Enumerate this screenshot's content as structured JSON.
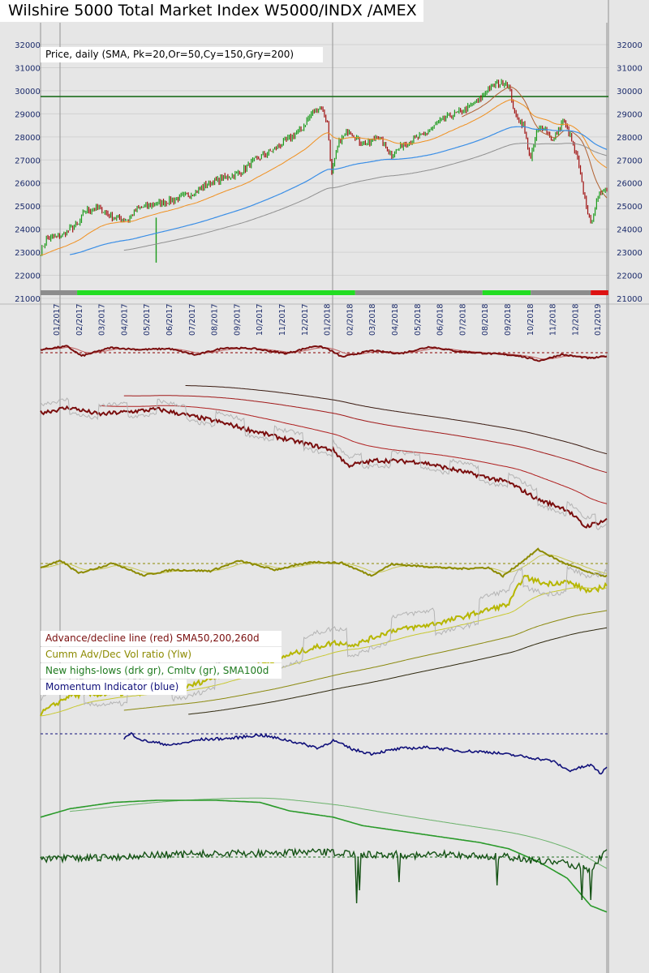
{
  "header": {
    "title": "Wilshire 5000 Total Market Index W5000/INDX /AMEX"
  },
  "price_legend": "Price, daily (SMA, Pk=20,Or=50,Cy=150,Gry=200)",
  "legends": [
    {
      "label": "Advance/decline line (red) SMA50,200,260d",
      "color": "#7a0e0e"
    },
    {
      "label": "Cumm Adv/Dec Vol ratio (Ylw)",
      "color": "#8c8a00"
    },
    {
      "label": "New highs-lows (drk gr), Cmltv (gr), SMA100d",
      "color": "#1e7a1e"
    },
    {
      "label": "Momentum Indicator (blue)",
      "color": "#10107a"
    }
  ],
  "colors": {
    "up": "#1a9a1a",
    "down": "#a01010",
    "reference": "#1e6e1e",
    "sma20": "#b06030",
    "sma50": "#f09020",
    "sma150": "#3a8ee6",
    "sma200": "#909090",
    "adline": "#7a0e0e",
    "vol": "#8c8a00",
    "nhnl": "#145214",
    "cmltv": "#2a9a2a",
    "momentum": "#10107a"
  },
  "chart_data": [
    {
      "type": "line",
      "title": "Wilshire 5000 Total Market Index W5000/INDX /AMEX",
      "subtitle": "Price, daily (SMA, Pk=20,Or=50,Cy=150,Gry=200)",
      "x_ticks": [
        "01/2017",
        "02/2017",
        "03/2017",
        "04/2017",
        "05/2017",
        "06/2017",
        "07/2017",
        "08/2017",
        "09/2017",
        "10/2017",
        "11/2017",
        "12/2017",
        "01/2018",
        "02/2018",
        "03/2018",
        "04/2018",
        "05/2018",
        "06/2018",
        "07/2018",
        "08/2018",
        "09/2018",
        "10/2018",
        "11/2018",
        "12/2018",
        "01/2019"
      ],
      "y_ticks": [
        21000,
        22000,
        23000,
        24000,
        25000,
        26000,
        27000,
        28000,
        29000,
        30000,
        31000,
        32000
      ],
      "ylim": [
        21000,
        32000
      ],
      "reference_line": 29750,
      "price_knots": [
        [
          0,
          23000
        ],
        [
          4,
          23600
        ],
        [
          14,
          23700
        ],
        [
          20,
          24000
        ],
        [
          26,
          24200
        ],
        [
          30,
          24800
        ],
        [
          40,
          24900
        ],
        [
          50,
          24500
        ],
        [
          60,
          24400
        ],
        [
          66,
          24900
        ],
        [
          80,
          25100
        ],
        [
          93,
          25300
        ],
        [
          105,
          25600
        ],
        [
          115,
          26000
        ],
        [
          125,
          26200
        ],
        [
          135,
          26400
        ],
        [
          147,
          27000
        ],
        [
          158,
          27400
        ],
        [
          169,
          27900
        ],
        [
          178,
          28300
        ],
        [
          186,
          29100
        ],
        [
          192,
          29300
        ],
        [
          196,
          28600
        ],
        [
          199,
          26400
        ],
        [
          204,
          27800
        ],
        [
          211,
          28300
        ],
        [
          218,
          27800
        ],
        [
          225,
          27700
        ],
        [
          230,
          28100
        ],
        [
          240,
          27200
        ],
        [
          248,
          27700
        ],
        [
          256,
          27900
        ],
        [
          262,
          28100
        ],
        [
          268,
          28400
        ],
        [
          276,
          28800
        ],
        [
          284,
          29000
        ],
        [
          291,
          29200
        ],
        [
          297,
          29500
        ],
        [
          300,
          29600
        ],
        [
          306,
          30100
        ],
        [
          312,
          30300
        ],
        [
          318,
          30400
        ],
        [
          320,
          30200
        ],
        [
          324,
          29000
        ],
        [
          330,
          28500
        ],
        [
          335,
          27000
        ],
        [
          339,
          28200
        ],
        [
          344,
          28500
        ],
        [
          350,
          27800
        ],
        [
          357,
          28700
        ],
        [
          362,
          28000
        ],
        [
          367,
          27000
        ],
        [
          372,
          25300
        ],
        [
          376,
          24200
        ],
        [
          379,
          25000
        ],
        [
          382,
          25500
        ],
        [
          385,
          25800
        ],
        [
          387,
          25700
        ]
      ],
      "sma_periods": {
        "pink": 20,
        "orange": 50,
        "cyan": 150,
        "gray": 200
      },
      "regime_bar": [
        {
          "from": 0,
          "to": 25,
          "state": "neutral"
        },
        {
          "from": 25,
          "to": 215,
          "state": "bullish"
        },
        {
          "from": 215,
          "to": 302,
          "state": "neutral"
        },
        {
          "from": 302,
          "to": 335,
          "state": "bullish"
        },
        {
          "from": 335,
          "to": 376,
          "state": "neutral"
        },
        {
          "from": 376,
          "to": 388,
          "state": "bearish"
        }
      ]
    },
    {
      "type": "line",
      "title": "Advance/decline line (red) SMA50,200,260d",
      "oscillator_knots": [
        [
          0,
          0.78
        ],
        [
          18,
          0.85
        ],
        [
          28,
          0.65
        ],
        [
          48,
          0.82
        ],
        [
          68,
          0.78
        ],
        [
          88,
          0.8
        ],
        [
          106,
          0.67
        ],
        [
          126,
          0.82
        ],
        [
          146,
          0.8
        ],
        [
          168,
          0.7
        ],
        [
          188,
          0.86
        ],
        [
          196,
          0.8
        ],
        [
          206,
          0.63
        ],
        [
          226,
          0.76
        ],
        [
          246,
          0.7
        ],
        [
          266,
          0.84
        ],
        [
          286,
          0.74
        ],
        [
          306,
          0.7
        ],
        [
          326,
          0.66
        ],
        [
          341,
          0.55
        ],
        [
          356,
          0.68
        ],
        [
          376,
          0.6
        ],
        [
          387,
          0.65
        ]
      ],
      "adline_knots": [
        [
          0,
          22
        ],
        [
          20,
          28
        ],
        [
          40,
          20
        ],
        [
          80,
          26
        ],
        [
          120,
          12
        ],
        [
          160,
          -6
        ],
        [
          200,
          -22
        ],
        [
          210,
          -40
        ],
        [
          230,
          -34
        ],
        [
          260,
          -36
        ],
        [
          290,
          -48
        ],
        [
          320,
          -60
        ],
        [
          340,
          -80
        ],
        [
          360,
          -92
        ],
        [
          372,
          -112
        ],
        [
          387,
          -104
        ]
      ]
    },
    {
      "type": "line",
      "title": "Cumm Adv/Dec Vol ratio (Ylw)",
      "oscillator_knots": [
        [
          0,
          0.5
        ],
        [
          14,
          0.62
        ],
        [
          26,
          0.4
        ],
        [
          50,
          0.58
        ],
        [
          70,
          0.36
        ],
        [
          90,
          0.46
        ],
        [
          116,
          0.44
        ],
        [
          136,
          0.62
        ],
        [
          160,
          0.46
        ],
        [
          186,
          0.6
        ],
        [
          206,
          0.58
        ],
        [
          226,
          0.36
        ],
        [
          240,
          0.56
        ],
        [
          262,
          0.52
        ],
        [
          286,
          0.48
        ],
        [
          306,
          0.5
        ],
        [
          316,
          0.35
        ],
        [
          340,
          0.82
        ],
        [
          356,
          0.6
        ],
        [
          376,
          0.4
        ],
        [
          387,
          0.35
        ]
      ],
      "cumulative_knots": [
        [
          0,
          0
        ],
        [
          20,
          18
        ],
        [
          60,
          20
        ],
        [
          100,
          26
        ],
        [
          130,
          42
        ],
        [
          150,
          48
        ],
        [
          170,
          58
        ],
        [
          200,
          70
        ],
        [
          215,
          68
        ],
        [
          240,
          82
        ],
        [
          260,
          86
        ],
        [
          280,
          92
        ],
        [
          300,
          100
        ],
        [
          320,
          108
        ],
        [
          330,
          135
        ],
        [
          345,
          128
        ],
        [
          360,
          130
        ],
        [
          376,
          120
        ],
        [
          387,
          127
        ]
      ]
    },
    {
      "type": "line",
      "title": "New highs-lows (drk gr), Cmltv (gr), SMA100d",
      "nhnl_knots": [
        [
          0,
          0.5
        ],
        [
          40,
          0.45
        ],
        [
          60,
          0.4
        ],
        [
          80,
          0.36
        ],
        [
          100,
          0.34
        ],
        [
          130,
          0.32
        ],
        [
          160,
          0.3
        ],
        [
          200,
          0.28
        ],
        [
          220,
          0.36
        ],
        [
          240,
          0.34
        ],
        [
          260,
          0.38
        ],
        [
          280,
          0.34
        ],
        [
          300,
          0.4
        ],
        [
          320,
          0.42
        ],
        [
          340,
          0.55
        ],
        [
          360,
          0.62
        ],
        [
          376,
          0.8
        ],
        [
          387,
          0.2
        ]
      ],
      "nhnl_spikes": [
        [
          216,
          1.85
        ],
        [
          218,
          1.45
        ],
        [
          245,
          1.2
        ],
        [
          312,
          1.3
        ],
        [
          370,
          1.75
        ],
        [
          376,
          1.75
        ]
      ],
      "cmltv_knots": [
        [
          0,
          44
        ],
        [
          20,
          52
        ],
        [
          50,
          58
        ],
        [
          80,
          60
        ],
        [
          120,
          60
        ],
        [
          150,
          58
        ],
        [
          170,
          50
        ],
        [
          200,
          44
        ],
        [
          220,
          36
        ],
        [
          240,
          32
        ],
        [
          260,
          28
        ],
        [
          280,
          24
        ],
        [
          300,
          20
        ],
        [
          320,
          14
        ],
        [
          340,
          2
        ],
        [
          360,
          -14
        ],
        [
          376,
          -40
        ],
        [
          387,
          -46
        ]
      ]
    },
    {
      "type": "line",
      "title": "Momentum Indicator (blue)",
      "momentum_knots": [
        [
          57,
          0.82
        ],
        [
          62,
          0.9
        ],
        [
          70,
          0.78
        ],
        [
          90,
          0.7
        ],
        [
          110,
          0.8
        ],
        [
          130,
          0.82
        ],
        [
          150,
          0.88
        ],
        [
          170,
          0.78
        ],
        [
          190,
          0.65
        ],
        [
          200,
          0.78
        ],
        [
          214,
          0.62
        ],
        [
          226,
          0.55
        ],
        [
          246,
          0.64
        ],
        [
          266,
          0.66
        ],
        [
          286,
          0.6
        ],
        [
          306,
          0.58
        ],
        [
          330,
          0.5
        ],
        [
          350,
          0.42
        ],
        [
          361,
          0.25
        ],
        [
          376,
          0.35
        ],
        [
          383,
          0.2
        ],
        [
          387,
          0.3
        ]
      ]
    }
  ]
}
